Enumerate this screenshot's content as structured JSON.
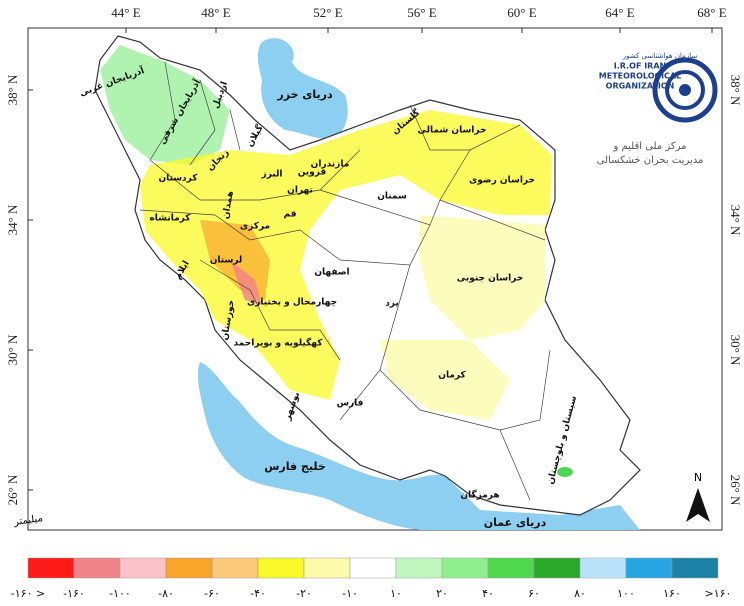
{
  "map": {
    "lon_labels": [
      "44° E",
      "48° E",
      "52° E",
      "56° E",
      "60° E",
      "64° E",
      "68° E"
    ],
    "lat_labels": [
      "38° N",
      "34° N",
      "30° N",
      "26° N"
    ],
    "seas": [
      "دریای خزر",
      "خلیج فارس",
      "دریای عمان"
    ],
    "provinces": [
      "آذربایجان غربی",
      "آذربایجان شرقی",
      "اردبیل",
      "گیلان",
      "زنجان",
      "قزوین",
      "البرز",
      "مازندران",
      "گلستان",
      "خراسان شمالی",
      "خراسان رضوی",
      "سمنان",
      "تهران",
      "قم",
      "مرکزی",
      "همدان",
      "کردستان",
      "کرمانشاه",
      "لرستان",
      "ایلام",
      "خوزستان",
      "اصفهان",
      "چهارمحال و بختیاری",
      "کهگیلویه و بویراحمد",
      "یزد",
      "خراسان جنوبی",
      "فارس",
      "کرمان",
      "بوشهر",
      "هرمزگان",
      "سیستان و بلوچستان"
    ],
    "north": "N"
  },
  "logo": {
    "org_fa": "سازمان هواشناسی کشور",
    "line1": "I.R.OF IRAN",
    "line2": "METEOROLOGICAL",
    "line3": "ORGANIZATION",
    "center1": "مرکز ملی اقلیم و",
    "center2": "مدیریت بحران خشکسالی"
  },
  "legend": {
    "unit": "میلیمتر",
    "labels": [
      "-۱۶۰ >",
      "-۱۶۰",
      "-۱۰۰",
      "-۸۰",
      "-۶۰",
      "-۴۰",
      "-۲۰",
      "-۱۰",
      "۱۰",
      "۲۰",
      "۴۰",
      "۶۰",
      "۸۰",
      "۱۰۰",
      "۱۶۰",
      ">۱۶۰"
    ],
    "colors": [
      "#ff1a1a",
      "#f0828a",
      "#fbc3c9",
      "#f9a52c",
      "#fbc97a",
      "#fafa28",
      "#fbfbab",
      "#ffffff",
      "#bff7bf",
      "#8fee8f",
      "#4fd84f",
      "#2aa82a",
      "#b9e2fb",
      "#26a6e0",
      "#1b83a6"
    ]
  }
}
